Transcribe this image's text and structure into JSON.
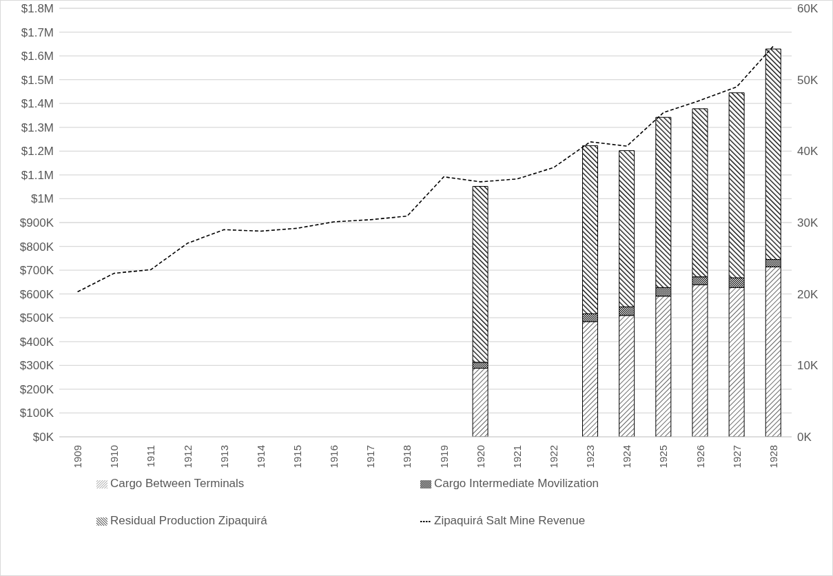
{
  "chart_data": {
    "type": "bar",
    "stacked": true,
    "categories": [
      "1909",
      "1910",
      "1911",
      "1912",
      "1913",
      "1914",
      "1915",
      "1916",
      "1917",
      "1918",
      "1919",
      "1920",
      "1921",
      "1922",
      "1923",
      "1924",
      "1925",
      "1926",
      "1927",
      "1928"
    ],
    "series": [
      {
        "name": "Cargo Between Terminals",
        "color": "#000000",
        "values": [
          null,
          null,
          null,
          null,
          null,
          null,
          null,
          null,
          null,
          null,
          null,
          288000,
          null,
          null,
          484000,
          510000,
          591000,
          639000,
          627000,
          714000
        ]
      },
      {
        "name": "Cargo Intermediate Movilization",
        "color": "#000000",
        "values": [
          null,
          null,
          null,
          null,
          null,
          null,
          null,
          null,
          null,
          null,
          null,
          25000,
          null,
          null,
          33000,
          36000,
          36000,
          33000,
          41000,
          31000
        ]
      },
      {
        "name": "Residual Production Zipaquirá",
        "color": "#000000",
        "values": [
          null,
          null,
          null,
          null,
          null,
          null,
          null,
          null,
          null,
          null,
          null,
          739000,
          null,
          null,
          706000,
          656000,
          715000,
          706000,
          777000,
          884000
        ]
      },
      {
        "name": "Zipaquirá Salt Mine Revenue",
        "type": "line",
        "axis": "y2",
        "color": "#000000",
        "line_style": "dashed",
        "marker": "none",
        "values": [
          20300,
          22900,
          23400,
          27100,
          29000,
          28800,
          29200,
          30100,
          30400,
          30900,
          36400,
          35700,
          36100,
          37700,
          41300,
          40700,
          45400,
          47100,
          49000,
          54700
        ]
      }
    ],
    "ylim": [
      0,
      1800000
    ],
    "yticks": [
      {
        "value": 0,
        "label": "$0K"
      },
      {
        "value": 100000,
        "label": "$100K"
      },
      {
        "value": 200000,
        "label": "$200K"
      },
      {
        "value": 300000,
        "label": "$300K"
      },
      {
        "value": 400000,
        "label": "$400K"
      },
      {
        "value": 500000,
        "label": "$500K"
      },
      {
        "value": 600000,
        "label": "$600K"
      },
      {
        "value": 700000,
        "label": "$700K"
      },
      {
        "value": 800000,
        "label": "$800K"
      },
      {
        "value": 900000,
        "label": "$900K"
      },
      {
        "value": 1000000,
        "label": "$1M"
      },
      {
        "value": 1100000,
        "label": "$1.1M"
      },
      {
        "value": 1200000,
        "label": "$1.2M"
      },
      {
        "value": 1300000,
        "label": "$1.3M"
      },
      {
        "value": 1400000,
        "label": "$1.4M"
      },
      {
        "value": 1500000,
        "label": "$1.5M"
      },
      {
        "value": 1600000,
        "label": "$1.6M"
      },
      {
        "value": 1700000,
        "label": "$1.7M"
      },
      {
        "value": 1800000,
        "label": "$1.8M"
      }
    ],
    "y2lim": [
      0,
      60000
    ],
    "y2ticks": [
      {
        "value": 0,
        "label": "0K"
      },
      {
        "value": 10000,
        "label": "10K"
      },
      {
        "value": 20000,
        "label": "20K"
      },
      {
        "value": 30000,
        "label": "30K"
      },
      {
        "value": 40000,
        "label": "40K"
      },
      {
        "value": 50000,
        "label": "50K"
      },
      {
        "value": 60000,
        "label": "60K"
      }
    ],
    "grid": "y",
    "legend": "bottom"
  }
}
